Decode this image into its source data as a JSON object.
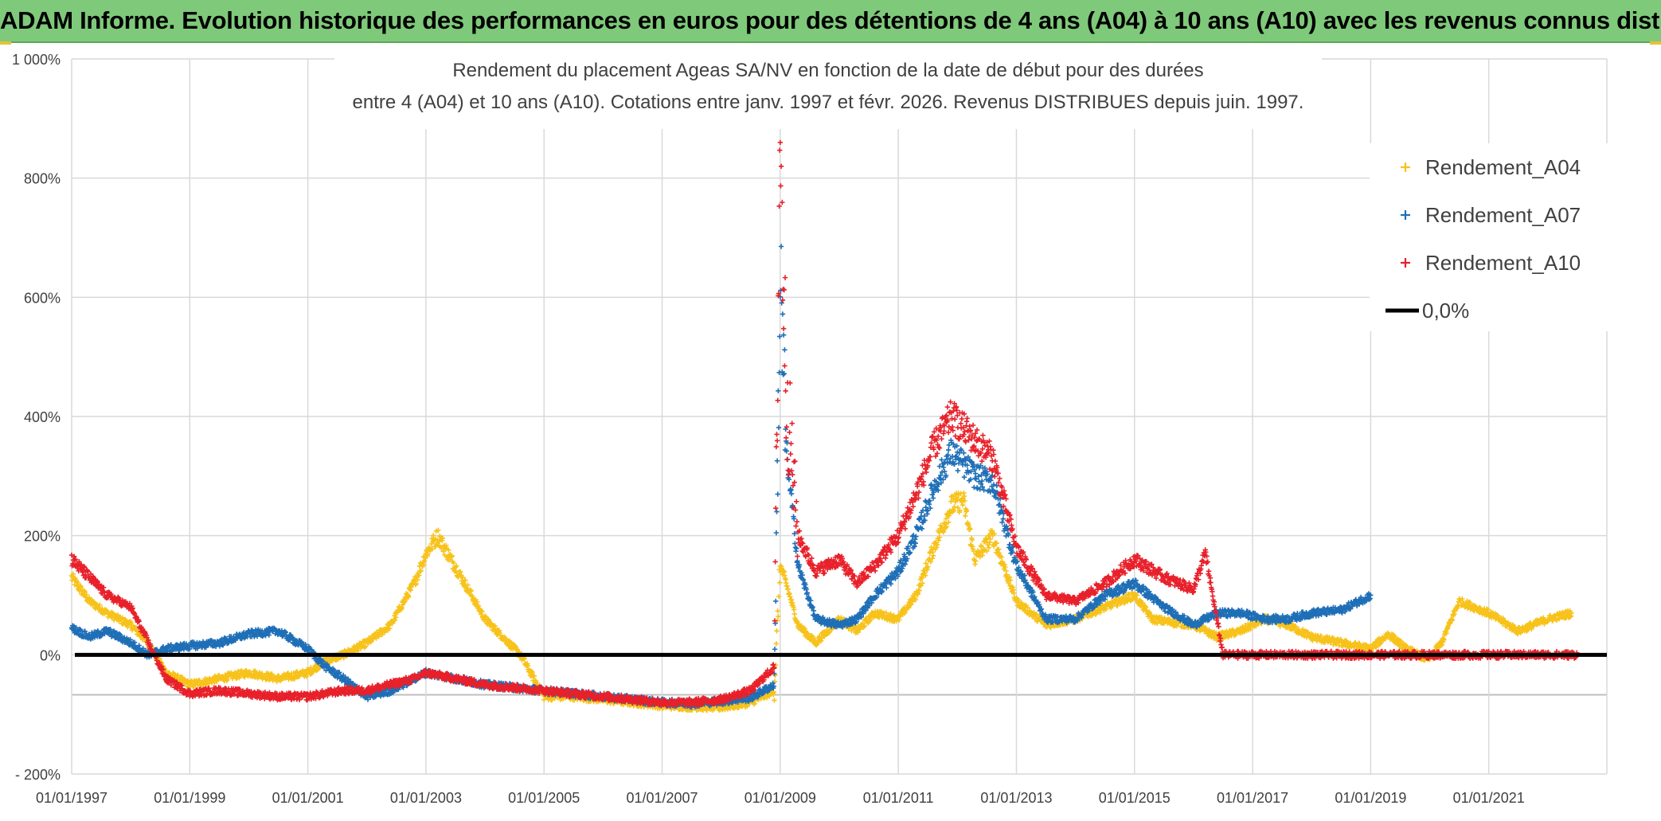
{
  "banner": {
    "title": "ADAM Informe. Evolution historique des performances en euros pour des détentions de 4 ans (A04) à 10 ans (A10) avec les revenus connus distribués"
  },
  "colors": {
    "banner_bg": "#7fc97a",
    "a04": "#f7c21a",
    "a07": "#1f6fb7",
    "a10": "#e8202a",
    "zero_line": "#000000",
    "grid": "#d9d9d9"
  },
  "chart_data": {
    "type": "scatter",
    "title_lines": [
      "Rendement du placement Ageas SA/NV en fonction de la date de début pour des durées",
      "entre 4 (A04) et 10 ans (A10). Cotations entre janv. 1997 et févr. 2026. Revenus DISTRIBUES depuis juin. 1997."
    ],
    "xlabel": "",
    "ylabel": "",
    "xlim": [
      1997.0,
      2023.0
    ],
    "ylim": [
      -200,
      1000
    ],
    "y_ticks": [
      -200,
      0,
      200,
      400,
      600,
      800,
      1000
    ],
    "y_tick_labels": [
      "- 200%",
      "0%",
      "200%",
      "400%",
      "600%",
      "800%",
      "1 000%"
    ],
    "x_ticks": [
      1997,
      1999,
      2001,
      2003,
      2005,
      2007,
      2009,
      2011,
      2013,
      2015,
      2017,
      2019,
      2021
    ],
    "x_tick_labels": [
      "01/01/1997",
      "01/01/1999",
      "01/01/2001",
      "01/01/2003",
      "01/01/2005",
      "01/01/2007",
      "01/01/2009",
      "01/01/2011",
      "01/01/2013",
      "01/01/2015",
      "01/01/2017",
      "01/01/2019",
      "01/01/2021"
    ],
    "grid": true,
    "legend_position": "top-right",
    "legend": [
      {
        "label": "Rendement_A04",
        "marker": "+",
        "color": "#f7c21a"
      },
      {
        "label": "Rendement_A07",
        "marker": "+",
        "color": "#1f6fb7"
      },
      {
        "label": "Rendement_A10",
        "marker": "+",
        "color": "#e8202a"
      },
      {
        "label": "0,0%",
        "marker": "line",
        "color": "#000000"
      }
    ],
    "series": [
      {
        "name": "Rendement_A04",
        "color": "#f7c21a",
        "x": [
          1997.0,
          1997.3,
          1997.6,
          1998.0,
          1998.3,
          1998.6,
          1999.0,
          1999.5,
          2000.0,
          2000.5,
          2001.0,
          2001.3,
          2001.6,
          2002.0,
          2002.4,
          2002.8,
          2003.0,
          2003.2,
          2003.6,
          2004.0,
          2004.3,
          2004.6,
          2005.0,
          2005.5,
          2006.0,
          2006.5,
          2007.0,
          2007.5,
          2008.0,
          2008.5,
          2008.9,
          2009.0,
          2009.1,
          2009.3,
          2009.6,
          2010.0,
          2010.3,
          2010.6,
          2011.0,
          2011.3,
          2011.6,
          2011.9,
          2012.1,
          2012.3,
          2012.6,
          2013.0,
          2013.5,
          2014.0,
          2014.5,
          2015.0,
          2015.3,
          2015.6,
          2016.0,
          2016.4,
          2016.8,
          2017.2,
          2017.6,
          2018.0,
          2018.5,
          2019.0,
          2019.3,
          2019.6,
          2019.9,
          2020.0,
          2020.2,
          2020.5,
          2021.0,
          2021.5,
          2022.0,
          2022.4
        ],
        "y": [
          130,
          90,
          70,
          50,
          20,
          -30,
          -50,
          -40,
          -30,
          -40,
          -30,
          -10,
          0,
          20,
          50,
          120,
          170,
          200,
          130,
          60,
          30,
          0,
          -70,
          -70,
          -75,
          -80,
          -85,
          -87,
          -88,
          -80,
          -60,
          150,
          120,
          50,
          20,
          60,
          40,
          70,
          60,
          100,
          180,
          250,
          260,
          160,
          200,
          90,
          50,
          60,
          80,
          100,
          60,
          55,
          50,
          30,
          40,
          60,
          50,
          30,
          20,
          10,
          35,
          10,
          -5,
          -5,
          20,
          90,
          70,
          40,
          60,
          70
        ]
      },
      {
        "name": "Rendement_A07",
        "color": "#1f6fb7",
        "x": [
          1997.0,
          1997.3,
          1997.6,
          1998.0,
          1998.3,
          1998.6,
          1999.0,
          1999.5,
          2000.0,
          2000.5,
          2001.0,
          2001.3,
          2001.6,
          2002.0,
          2002.4,
          2002.8,
          2003.0,
          2003.5,
          2004.0,
          2004.5,
          2005.0,
          2005.5,
          2006.0,
          2006.5,
          2007.0,
          2007.5,
          2008.0,
          2008.5,
          2008.9,
          2009.0,
          2009.1,
          2009.3,
          2009.6,
          2010.0,
          2010.3,
          2010.6,
          2011.0,
          2011.3,
          2011.6,
          2011.9,
          2012.1,
          2012.3,
          2012.6,
          2013.0,
          2013.5,
          2014.0,
          2014.5,
          2015.0,
          2015.5,
          2016.0,
          2016.4,
          2016.8,
          2017.2,
          2017.6,
          2018.0,
          2018.5,
          2019.0
        ],
        "y": [
          45,
          30,
          40,
          20,
          0,
          10,
          15,
          20,
          35,
          40,
          10,
          -20,
          -40,
          -70,
          -60,
          -40,
          -30,
          -40,
          -50,
          -55,
          -60,
          -65,
          -70,
          -75,
          -80,
          -82,
          -78,
          -72,
          -50,
          620,
          350,
          150,
          60,
          50,
          60,
          100,
          140,
          200,
          280,
          340,
          320,
          300,
          290,
          150,
          60,
          60,
          100,
          120,
          80,
          50,
          70,
          70,
          60,
          60,
          70,
          75,
          100
        ]
      },
      {
        "name": "Rendement_A10",
        "color": "#e8202a",
        "x": [
          1997.0,
          1997.3,
          1997.6,
          1998.0,
          1998.3,
          1998.6,
          1999.0,
          1999.5,
          2000.0,
          2000.5,
          2001.0,
          2001.3,
          2001.6,
          2002.0,
          2002.4,
          2002.8,
          2003.0,
          2003.5,
          2004.0,
          2004.5,
          2005.0,
          2005.5,
          2006.0,
          2006.5,
          2007.0,
          2007.5,
          2008.0,
          2008.5,
          2008.9,
          2009.0,
          2009.1,
          2009.3,
          2009.6,
          2010.0,
          2010.3,
          2010.6,
          2011.0,
          2011.3,
          2011.6,
          2011.9,
          2012.1,
          2012.3,
          2012.6,
          2013.0,
          2013.5,
          2014.0,
          2014.5,
          2015.0,
          2015.5,
          2016.0,
          2016.2,
          2016.5,
          2017.0,
          2017.5,
          2018.0,
          2018.5,
          2019.0,
          2019.5,
          2020.0,
          2020.5,
          2021.0,
          2021.5,
          2022.0,
          2022.5
        ],
        "y": [
          160,
          130,
          100,
          80,
          20,
          -40,
          -65,
          -60,
          -65,
          -70,
          -70,
          -65,
          -60,
          -60,
          -50,
          -40,
          -30,
          -40,
          -50,
          -55,
          -60,
          -65,
          -70,
          -75,
          -80,
          -80,
          -75,
          -60,
          -20,
          900,
          450,
          200,
          140,
          160,
          120,
          150,
          200,
          270,
          350,
          400,
          380,
          360,
          330,
          180,
          100,
          90,
          120,
          160,
          130,
          110,
          170,
          0,
          0,
          0,
          0,
          0,
          0,
          0,
          0,
          0,
          0,
          0,
          0,
          0
        ]
      }
    ],
    "reference_line": {
      "name": "0,0%",
      "y": 0,
      "color": "#000000"
    }
  }
}
